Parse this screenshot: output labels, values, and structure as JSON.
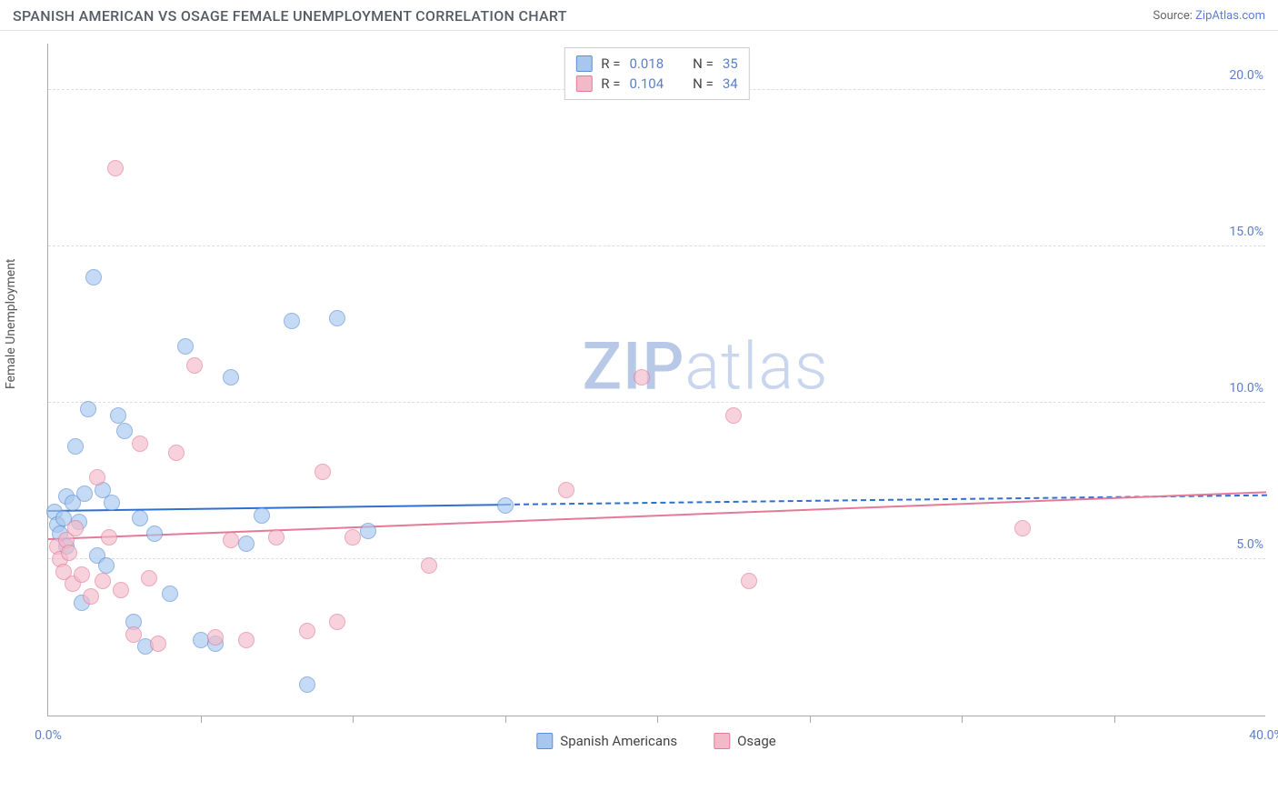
{
  "header": {
    "title": "SPANISH AMERICAN VS OSAGE FEMALE UNEMPLOYMENT CORRELATION CHART",
    "source_prefix": "Source: ",
    "source_link": "ZipAtlas.com"
  },
  "y_axis_label": "Female Unemployment",
  "watermark": {
    "bold": "ZIP",
    "light": "atlas"
  },
  "chart": {
    "type": "scatter",
    "xlim": [
      0,
      40
    ],
    "ylim": [
      0,
      21.5
    ],
    "x_ticks": [
      0,
      40
    ],
    "x_tick_labels": [
      "0.0%",
      "40.0%"
    ],
    "x_minor_ticks": [
      5,
      10,
      15,
      20,
      25,
      30,
      35
    ],
    "y_gridlines": [
      5,
      10,
      15,
      20
    ],
    "y_labels": [
      "5.0%",
      "10.0%",
      "15.0%",
      "20.0%"
    ],
    "background_color": "#ffffff",
    "grid_color": "#dddddd",
    "axis_color": "#aaaaaa",
    "label_color": "#5b7fce",
    "marker_radius": 9,
    "marker_stroke_width": 1.5,
    "marker_fill_opacity": 0.35,
    "legend_top": {
      "rows": [
        {
          "swatch_fill": "#a7c7ef",
          "swatch_stroke": "#5b8fd6",
          "r_label": "R =",
          "r_value": "0.018",
          "n_label": "N =",
          "n_value": "35"
        },
        {
          "swatch_fill": "#f4b9c9",
          "swatch_stroke": "#e47a98",
          "r_label": "R =",
          "r_value": "0.104",
          "n_label": "N =",
          "n_value": "34"
        }
      ]
    },
    "legend_bottom": [
      {
        "swatch_fill": "#a7c7ef",
        "swatch_stroke": "#5b8fd6",
        "label": "Spanish Americans"
      },
      {
        "swatch_fill": "#f4b9c9",
        "swatch_stroke": "#e47a98",
        "label": "Osage"
      }
    ],
    "series": [
      {
        "name": "Spanish Americans",
        "color_fill": "#a7c7ef",
        "color_stroke": "#5b8fd6",
        "trend_color": "#2f6fd0",
        "trend": {
          "x0": 0,
          "y0": 6.5,
          "x1_solid": 15,
          "y1_solid": 6.7,
          "x1_dash": 40,
          "y1_dash": 7.0
        },
        "points": [
          [
            0.2,
            6.5
          ],
          [
            0.3,
            6.1
          ],
          [
            0.4,
            5.8
          ],
          [
            0.5,
            6.3
          ],
          [
            0.6,
            7.0
          ],
          [
            0.6,
            5.4
          ],
          [
            0.8,
            6.8
          ],
          [
            0.9,
            8.6
          ],
          [
            1.0,
            6.2
          ],
          [
            1.1,
            3.6
          ],
          [
            1.2,
            7.1
          ],
          [
            1.3,
            9.8
          ],
          [
            1.5,
            14.0
          ],
          [
            1.6,
            5.1
          ],
          [
            1.8,
            7.2
          ],
          [
            1.9,
            4.8
          ],
          [
            2.1,
            6.8
          ],
          [
            2.3,
            9.6
          ],
          [
            2.5,
            9.1
          ],
          [
            2.8,
            3.0
          ],
          [
            3.0,
            6.3
          ],
          [
            3.2,
            2.2
          ],
          [
            3.5,
            5.8
          ],
          [
            4.0,
            3.9
          ],
          [
            4.5,
            11.8
          ],
          [
            5.0,
            2.4
          ],
          [
            5.5,
            2.3
          ],
          [
            6.0,
            10.8
          ],
          [
            6.5,
            5.5
          ],
          [
            7.0,
            6.4
          ],
          [
            8.0,
            12.6
          ],
          [
            8.5,
            1.0
          ],
          [
            9.5,
            12.7
          ],
          [
            10.5,
            5.9
          ],
          [
            15.0,
            6.7
          ]
        ]
      },
      {
        "name": "Osage",
        "color_fill": "#f4b9c9",
        "color_stroke": "#e47a98",
        "trend_color": "#e47a98",
        "trend": {
          "x0": 0,
          "y0": 5.6,
          "x1_solid": 40,
          "y1_solid": 7.1
        },
        "points": [
          [
            0.3,
            5.4
          ],
          [
            0.4,
            5.0
          ],
          [
            0.5,
            4.6
          ],
          [
            0.6,
            5.6
          ],
          [
            0.7,
            5.2
          ],
          [
            0.8,
            4.2
          ],
          [
            0.9,
            6.0
          ],
          [
            1.1,
            4.5
          ],
          [
            1.4,
            3.8
          ],
          [
            1.6,
            7.6
          ],
          [
            1.8,
            4.3
          ],
          [
            2.0,
            5.7
          ],
          [
            2.2,
            17.5
          ],
          [
            2.4,
            4.0
          ],
          [
            2.8,
            2.6
          ],
          [
            3.0,
            8.7
          ],
          [
            3.3,
            4.4
          ],
          [
            3.6,
            2.3
          ],
          [
            4.2,
            8.4
          ],
          [
            4.8,
            11.2
          ],
          [
            5.5,
            2.5
          ],
          [
            6.0,
            5.6
          ],
          [
            6.5,
            2.4
          ],
          [
            7.5,
            5.7
          ],
          [
            8.5,
            2.7
          ],
          [
            9.0,
            7.8
          ],
          [
            9.5,
            3.0
          ],
          [
            10.0,
            5.7
          ],
          [
            12.5,
            4.8
          ],
          [
            17.0,
            7.2
          ],
          [
            19.5,
            10.8
          ],
          [
            22.5,
            9.6
          ],
          [
            23.0,
            4.3
          ],
          [
            32.0,
            6.0
          ]
        ]
      }
    ]
  }
}
